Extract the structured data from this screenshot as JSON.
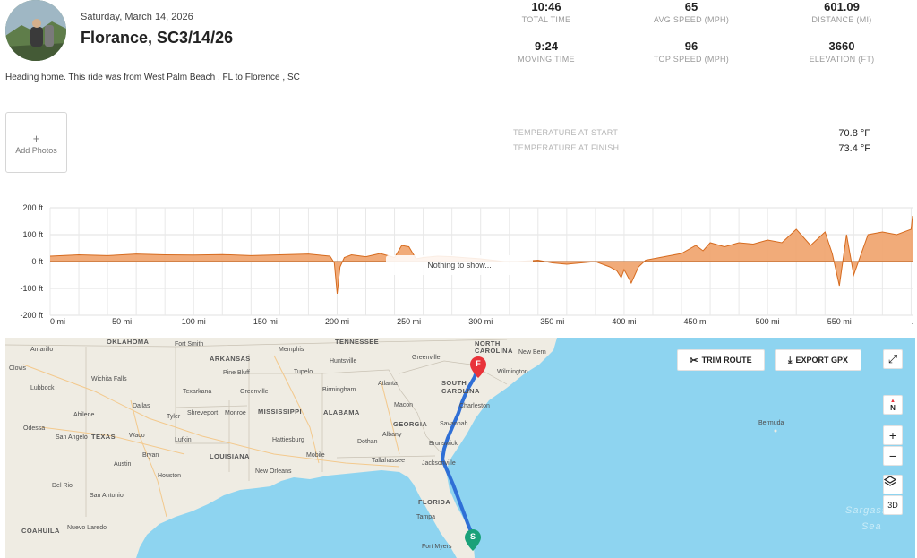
{
  "ride": {
    "date": "Saturday, March 14, 2026",
    "title": "Florance, SC3/14/26",
    "description": "Heading home. This ride was from West Palm Beach , FL to Florence , SC"
  },
  "stats": [
    {
      "value": "10:46",
      "label": "TOTAL TIME"
    },
    {
      "value": "65",
      "label": "AVG SPEED (MPH)"
    },
    {
      "value": "601.09",
      "label": "DISTANCE (MI)"
    },
    {
      "value": "9:24",
      "label": "MOVING TIME"
    },
    {
      "value": "96",
      "label": "TOP SPEED (MPH)"
    },
    {
      "value": "3660",
      "label": "ELEVATION (FT)"
    }
  ],
  "photos": {
    "plus": "+",
    "label": "Add Photos"
  },
  "temperature": {
    "start_label": "TEMPERATURE AT START",
    "start_value": "70.8 °F",
    "finish_label": "TEMPERATURE AT FINISH",
    "finish_value": "73.4 °F"
  },
  "chart": {
    "overlay": "Nothing to show...",
    "fill_color": "#f0a26a",
    "stroke_color": "#d66b1f"
  },
  "chart_data": {
    "type": "area",
    "y_ticks": [
      "200 ft",
      "100 ft",
      "0 ft",
      "-100 ft",
      "-200 ft"
    ],
    "x_ticks": [
      "0 mi",
      "50 mi",
      "100 mi",
      "150 mi",
      "200 mi",
      "250 mi",
      "300 mi",
      "350 mi",
      "400 mi",
      "450 mi",
      "500 mi",
      "550 mi",
      "."
    ],
    "ylim": [
      -200,
      200
    ],
    "xlim": [
      0,
      601
    ],
    "x": [
      0,
      20,
      40,
      60,
      80,
      100,
      120,
      140,
      160,
      180,
      195,
      198,
      200,
      202,
      205,
      210,
      220,
      230,
      240,
      245,
      250,
      255,
      260,
      270,
      280,
      300,
      320,
      340,
      350,
      360,
      370,
      380,
      390,
      395,
      398,
      400,
      405,
      410,
      415,
      420,
      430,
      440,
      450,
      455,
      460,
      470,
      480,
      490,
      500,
      510,
      520,
      530,
      540,
      545,
      550,
      555,
      560,
      570,
      580,
      590,
      600,
      601
    ],
    "y": [
      20,
      25,
      22,
      28,
      25,
      24,
      26,
      22,
      25,
      28,
      20,
      -5,
      -120,
      -20,
      15,
      25,
      18,
      30,
      15,
      60,
      55,
      10,
      15,
      20,
      18,
      10,
      -2,
      5,
      -5,
      -10,
      -5,
      0,
      -20,
      -35,
      -60,
      -30,
      -80,
      -20,
      5,
      10,
      20,
      30,
      60,
      40,
      70,
      55,
      70,
      65,
      80,
      70,
      120,
      60,
      110,
      30,
      -90,
      100,
      -50,
      100,
      110,
      100,
      120,
      170
    ]
  },
  "map": {
    "trim_label": "TRIM ROUTE",
    "export_label": "EXPORT GPX",
    "compass_label": "N",
    "zoom_in": "+",
    "zoom_out": "−",
    "view_3d": "3D",
    "start_marker": "S",
    "finish_marker": "F",
    "labels": {
      "oklahoma": "OKLAHOMA",
      "fort_smith": "Fort Smith",
      "memphis": "Memphis",
      "tennessee": "TENNESSEE",
      "north_carolina": "NORTH CAROLINA",
      "amarillo": "Amarillo",
      "arkansas": "ARKANSAS",
      "huntsville": "Huntsville",
      "greenville_sc": "Greenville",
      "new_bern": "New Bern",
      "clovis": "Clovis",
      "wichita_falls": "Wichita Falls",
      "pine_bluff": "Pine Bluff",
      "tupelo": "Tupelo",
      "wilmington": "Wilmington",
      "lubbock": "Lubbock",
      "texarkana": "Texarkana",
      "greenville_ms": "Greenville",
      "birmingham": "Birmingham",
      "atlanta": "Atlanta",
      "south_carolina": "SOUTH CAROLINA",
      "abilene": "Abilene",
      "dallas": "Dallas",
      "tyler": "Tyler",
      "shreveport": "Shreveport",
      "monroe": "Monroe",
      "mississippi": "MISSISSIPPI",
      "alabama": "ALABAMA",
      "macon": "Macon",
      "charleston": "Charleston",
      "odessa": "Odessa",
      "texas": "TEXAS",
      "waco": "Waco",
      "georgia": "GEORGIA",
      "savannah": "Savannah",
      "bermuda": "Bermuda",
      "san_angelo": "San Angelo",
      "lufkin": "Lufkin",
      "hattiesburg": "Hattiesburg",
      "dothan": "Dothan",
      "albany": "Albany",
      "brunswick": "Brunswick",
      "bryan": "Bryan",
      "louisiana": "LOUISIANA",
      "mobile": "Mobile",
      "tallahassee": "Tallahassee",
      "jacksonville": "Jacksonville",
      "austin": "Austin",
      "new_orleans": "New Orleans",
      "houston": "Houston",
      "del_rio": "Del Rio",
      "san_antonio": "San Antonio",
      "florida": "FLORIDA",
      "tampa": "Tampa",
      "sargasso": "Sargasso",
      "sea": "Sea",
      "coahuila": "COAHUILA",
      "nuevo_laredo": "Nuevo Laredo",
      "fort_myers": "Fort Myers"
    }
  }
}
